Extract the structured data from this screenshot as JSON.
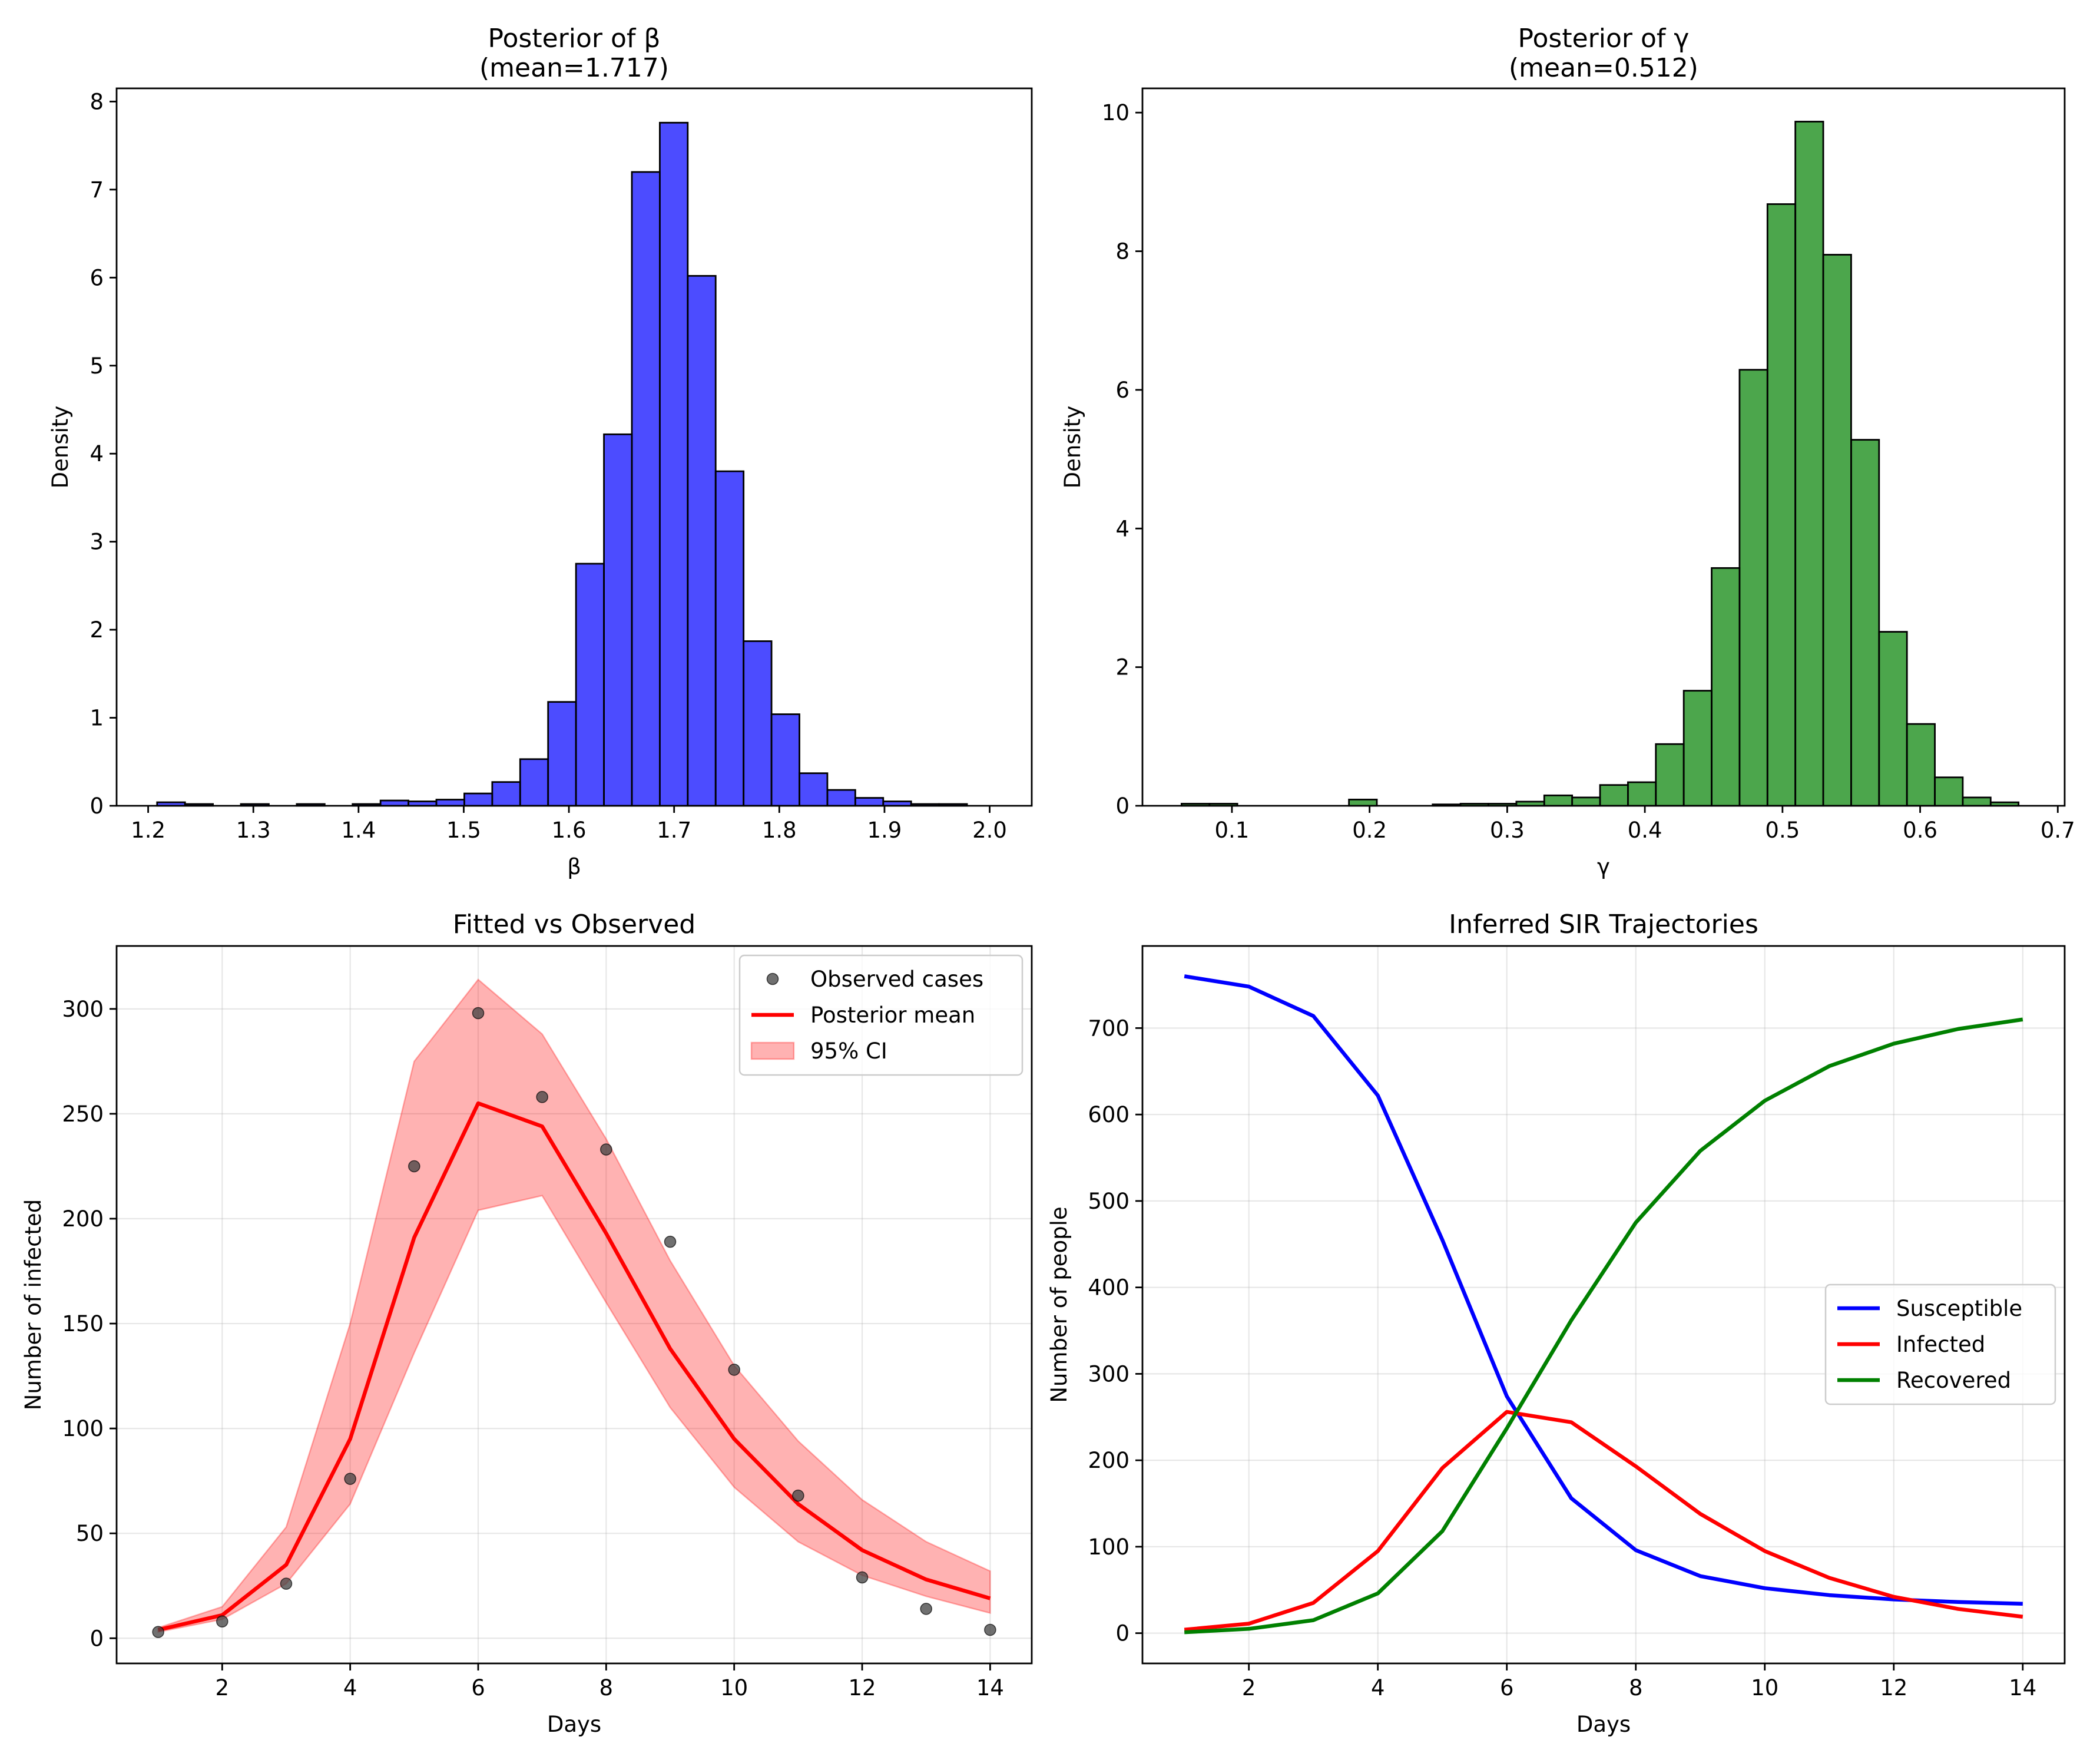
{
  "chart_data": [
    {
      "type": "bar",
      "title": "Posterior of β\n(mean=1.717)",
      "xlabel": "β",
      "ylabel": "Density",
      "xlim": [
        1.17,
        2.04
      ],
      "ylim": [
        0,
        8.15
      ],
      "xticks": [
        "1.2",
        "1.3",
        "1.4",
        "1.5",
        "1.6",
        "1.7",
        "1.8",
        "1.9",
        "2.0"
      ],
      "yticks": [
        "0",
        "1",
        "2",
        "3",
        "4",
        "5",
        "6",
        "7",
        "8"
      ],
      "bar_color": "#0000ff",
      "bar_alpha": 0.7,
      "bin_start": 1.2085,
      "bin_width": 0.02655,
      "values": [
        0.04,
        0.02,
        0.0,
        0.02,
        0.0,
        0.02,
        0.0,
        0.02,
        0.06,
        0.05,
        0.07,
        0.14,
        0.27,
        0.53,
        1.18,
        2.75,
        4.22,
        7.2,
        7.76,
        6.02,
        3.8,
        1.87,
        1.04,
        0.37,
        0.18,
        0.09,
        0.05,
        0.02,
        0.02,
        0.0
      ]
    },
    {
      "type": "bar",
      "title": "Posterior of γ\n(mean=0.512)",
      "xlabel": "γ",
      "ylabel": "Density",
      "xlim": [
        0.035,
        0.705
      ],
      "ylim": [
        0,
        10.35
      ],
      "xticks": [
        "0.1",
        "0.2",
        "0.3",
        "0.4",
        "0.5",
        "0.6",
        "0.7"
      ],
      "yticks": [
        "0",
        "2",
        "4",
        "6",
        "8",
        "10"
      ],
      "bar_color": "#008000",
      "bar_alpha": 0.7,
      "bin_start": 0.0634,
      "bin_width": 0.02027,
      "values": [
        0.03,
        0.03,
        0.0,
        0.0,
        0.0,
        0.0,
        0.09,
        0.0,
        0.0,
        0.02,
        0.03,
        0.03,
        0.06,
        0.15,
        0.12,
        0.3,
        0.34,
        0.89,
        1.66,
        3.43,
        6.29,
        8.68,
        9.87,
        7.95,
        5.28,
        2.51,
        1.18,
        0.41,
        0.12,
        0.05
      ]
    },
    {
      "type": "line",
      "title": "Fitted vs Observed",
      "xlabel": "Days",
      "ylabel": "Number of infected",
      "xlim": [
        0.35,
        14.65
      ],
      "ylim": [
        -12,
        330
      ],
      "xticks": [
        "2",
        "4",
        "6",
        "8",
        "10",
        "12",
        "14"
      ],
      "yticks": [
        "0",
        "50",
        "100",
        "150",
        "200",
        "250",
        "300"
      ],
      "grid": true,
      "legend": {
        "placement": "top-right",
        "entries": [
          "Observed cases",
          "Posterior mean",
          "95% CI"
        ]
      },
      "x": [
        1,
        2,
        3,
        4,
        5,
        6,
        7,
        8,
        9,
        10,
        11,
        12,
        13,
        14
      ],
      "series": [
        {
          "name": "Observed cases",
          "kind": "scatter",
          "color": "#404040",
          "values": [
            3,
            8,
            26,
            76,
            225,
            298,
            258,
            233,
            189,
            128,
            68,
            29,
            14,
            4
          ]
        },
        {
          "name": "Posterior mean",
          "kind": "line",
          "color": "#ff0000",
          "values": [
            4,
            11,
            35,
            95,
            191,
            255,
            244,
            193,
            138,
            95,
            64,
            42,
            28,
            19
          ]
        },
        {
          "name": "95% CI",
          "kind": "band",
          "color": "#ff0000",
          "lower": [
            3,
            9,
            26,
            64,
            136,
            204,
            211,
            160,
            110,
            72,
            46,
            30,
            20,
            12
          ],
          "upper": [
            5,
            15,
            53,
            150,
            275,
            314,
            288,
            238,
            180,
            130,
            94,
            66,
            46,
            32
          ]
        }
      ]
    },
    {
      "type": "line",
      "title": "Inferred SIR Trajectories",
      "xlabel": "Days",
      "ylabel": "Number of people",
      "xlim": [
        0.35,
        14.65
      ],
      "ylim": [
        -35,
        795
      ],
      "xticks": [
        "2",
        "4",
        "6",
        "8",
        "10",
        "12",
        "14"
      ],
      "yticks": [
        "0",
        "100",
        "200",
        "300",
        "400",
        "500",
        "600",
        "700"
      ],
      "grid": true,
      "legend": {
        "placement": "center-right",
        "entries": [
          "Susceptible",
          "Infected",
          "Recovered"
        ]
      },
      "x": [
        1,
        2,
        3,
        4,
        5,
        6,
        7,
        8,
        9,
        10,
        11,
        12,
        13,
        14
      ],
      "series": [
        {
          "name": "Susceptible",
          "color": "#0000ff",
          "values": [
            760,
            748,
            714,
            622,
            455,
            274,
            156,
            96,
            66,
            52,
            44,
            39,
            36,
            34
          ]
        },
        {
          "name": "Infected",
          "color": "#ff0000",
          "values": [
            4,
            11,
            35,
            95,
            191,
            256,
            244,
            193,
            138,
            95,
            64,
            42,
            28,
            19
          ]
        },
        {
          "name": "Recovered",
          "color": "#008000",
          "values": [
            1,
            5,
            15,
            46,
            118,
            237,
            362,
            475,
            558,
            616,
            656,
            682,
            699,
            710
          ]
        }
      ]
    }
  ]
}
